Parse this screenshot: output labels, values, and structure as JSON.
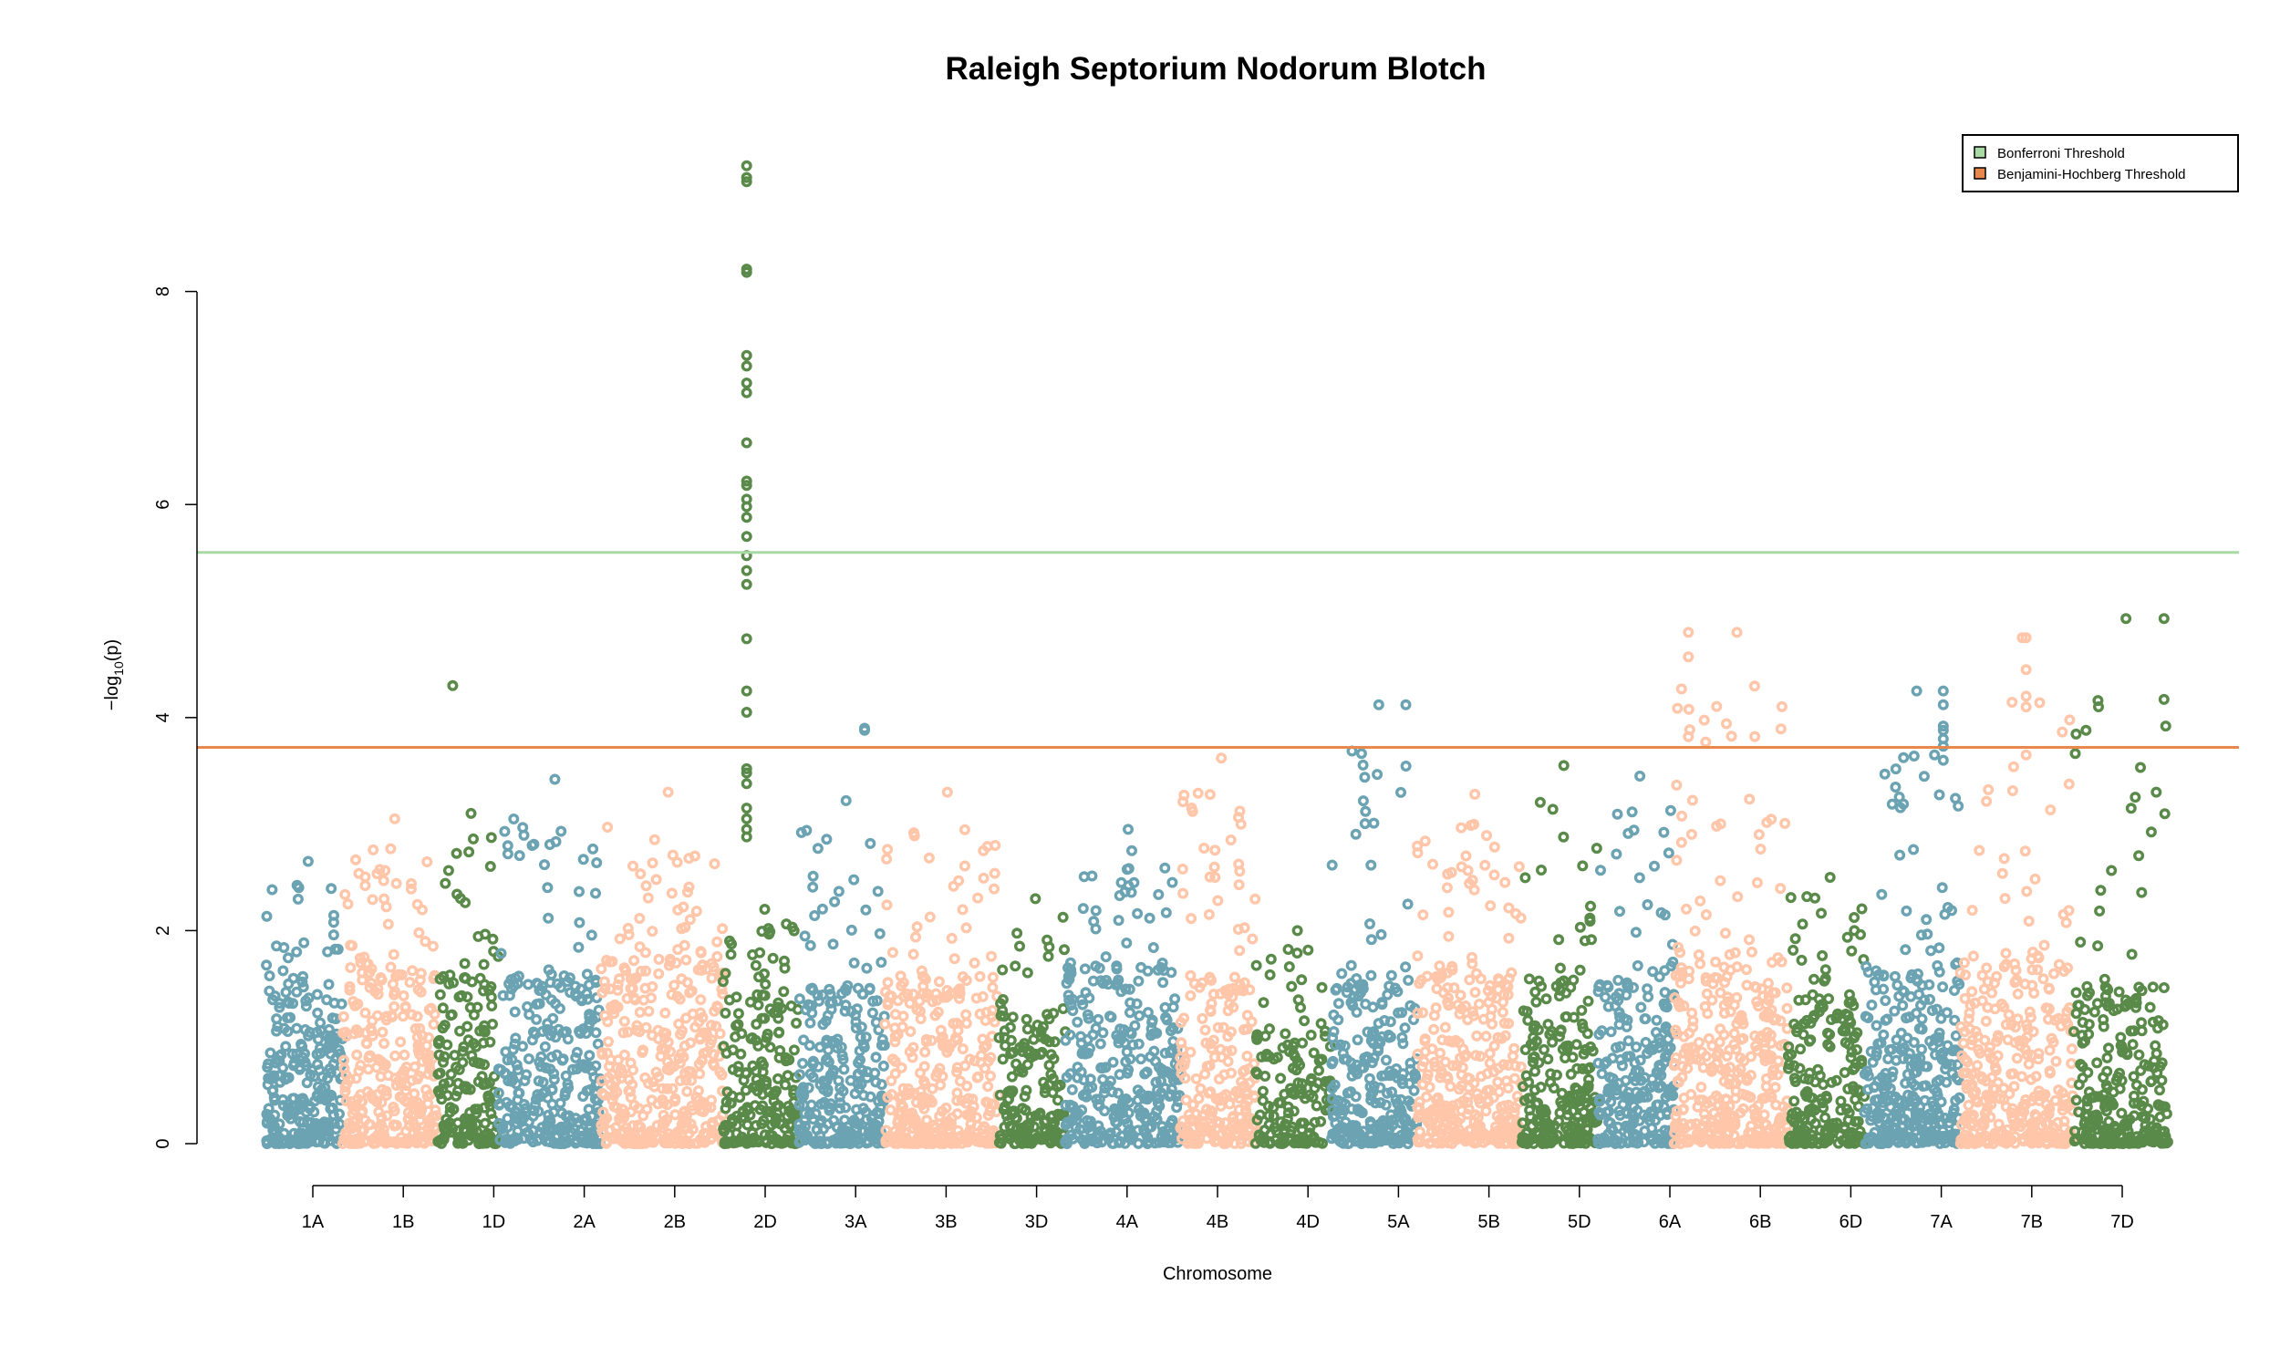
{
  "chart_data": {
    "type": "scatter",
    "title": "Raleigh Septorium Nodorum Blotch",
    "xlabel": "Chromosome",
    "ylabel": "−log",
    "ylabel_sub": "10",
    "ylabel_tail": "(p)",
    "ylim": [
      0,
      9.3
    ],
    "yticks": [
      "0",
      "2",
      "4",
      "6",
      "8"
    ],
    "grid": false,
    "legend_position": "top-right",
    "chromosomes": [
      "1A",
      "1B",
      "1D",
      "2A",
      "2B",
      "2D",
      "3A",
      "3B",
      "3D",
      "4A",
      "4B",
      "4D",
      "5A",
      "5B",
      "5D",
      "6A",
      "6B",
      "6D",
      "7A",
      "7B",
      "7D"
    ],
    "colors": {
      "blue": "#6ba3b3",
      "salmon": "#ffc6aa",
      "green": "#5a8a4a",
      "bonferroni": "#a9d9a5",
      "bh": "#e9884d"
    },
    "thresholds": [
      {
        "name": "Bonferroni Threshold",
        "value": 5.55,
        "color": "#a9d9a5"
      },
      {
        "name": "Benjamini-Hochberg Threshold",
        "value": 3.72,
        "color": "#e9884d"
      }
    ],
    "segments": [
      {
        "chr": "1A",
        "color": "blue",
        "x0": 0.0,
        "x1": 0.04,
        "max": 2.65,
        "dense": 1.6,
        "n": 260
      },
      {
        "chr": "1B",
        "color": "salmon",
        "x0": 0.04,
        "x1": 0.09,
        "max": 3.05,
        "dense": 1.7,
        "n": 300
      },
      {
        "chr": "1D",
        "color": "green",
        "x0": 0.09,
        "x1": 0.122,
        "max": 3.1,
        "dense": 1.7,
        "n": 180
      },
      {
        "chr": "2A",
        "color": "blue",
        "x0": 0.122,
        "x1": 0.176,
        "max": 3.42,
        "dense": 1.6,
        "n": 300
      },
      {
        "chr": "2B",
        "color": "salmon",
        "x0": 0.176,
        "x1": 0.24,
        "max": 3.3,
        "dense": 1.8,
        "n": 380
      },
      {
        "chr": "2D",
        "color": "green",
        "x0": 0.24,
        "x1": 0.28,
        "max": 2.2,
        "dense": 1.6,
        "n": 200
      },
      {
        "chr": "3A",
        "color": "blue",
        "x0": 0.28,
        "x1": 0.325,
        "max": 3.22,
        "dense": 1.5,
        "n": 260
      },
      {
        "chr": "3B",
        "color": "salmon",
        "x0": 0.325,
        "x1": 0.385,
        "max": 3.3,
        "dense": 1.6,
        "n": 340
      },
      {
        "chr": "3D",
        "color": "green",
        "x0": 0.385,
        "x1": 0.42,
        "max": 2.3,
        "dense": 1.3,
        "n": 160
      },
      {
        "chr": "4A",
        "color": "blue",
        "x0": 0.42,
        "x1": 0.48,
        "max": 2.95,
        "dense": 1.7,
        "n": 320
      },
      {
        "chr": "4B",
        "color": "salmon",
        "x0": 0.48,
        "x1": 0.52,
        "max": 3.62,
        "dense": 1.6,
        "n": 220
      },
      {
        "chr": "4D",
        "color": "green",
        "x0": 0.52,
        "x1": 0.56,
        "max": 2.0,
        "dense": 1.2,
        "n": 140
      },
      {
        "chr": "5A",
        "color": "blue",
        "x0": 0.56,
        "x1": 0.605,
        "max": 4.12,
        "dense": 1.6,
        "n": 260
      },
      {
        "chr": "5B",
        "color": "salmon",
        "x0": 0.605,
        "x1": 0.66,
        "max": 3.28,
        "dense": 1.7,
        "n": 320
      },
      {
        "chr": "5D",
        "color": "green",
        "x0": 0.66,
        "x1": 0.7,
        "max": 3.55,
        "dense": 1.6,
        "n": 220
      },
      {
        "chr": "6A",
        "color": "blue",
        "x0": 0.7,
        "x1": 0.74,
        "max": 3.45,
        "dense": 1.5,
        "n": 240
      },
      {
        "chr": "6B",
        "color": "salmon",
        "x0": 0.74,
        "x1": 0.8,
        "max": 4.8,
        "dense": 1.8,
        "n": 380
      },
      {
        "chr": "6D",
        "color": "green",
        "x0": 0.8,
        "x1": 0.84,
        "max": 2.5,
        "dense": 1.4,
        "n": 200
      },
      {
        "chr": "7A",
        "color": "blue",
        "x0": 0.84,
        "x1": 0.89,
        "max": 4.25,
        "dense": 1.7,
        "n": 320
      },
      {
        "chr": "7B",
        "color": "salmon",
        "x0": 0.89,
        "x1": 0.95,
        "max": 4.75,
        "dense": 1.8,
        "n": 340
      },
      {
        "chr": "7D",
        "color": "green",
        "x0": 0.95,
        "x1": 1.0,
        "max": 4.93,
        "dense": 1.5,
        "n": 260
      }
    ],
    "peaks": [
      {
        "chr": "2D",
        "color": "green",
        "x": 0.2525,
        "values": [
          9.18,
          9.07,
          9.03,
          8.21,
          8.18,
          7.4,
          7.3,
          7.14,
          7.05,
          6.58,
          6.22,
          6.18,
          6.05,
          5.98,
          5.88,
          5.7,
          5.52,
          5.38,
          5.25,
          4.74,
          4.25,
          4.05,
          3.52,
          3.48,
          3.38,
          3.15,
          3.05,
          2.95,
          2.88
        ]
      },
      {
        "chr": "1D",
        "color": "green",
        "x": 0.098,
        "values": [
          4.3
        ]
      },
      {
        "chr": "3A",
        "color": "blue",
        "x": 0.3145,
        "values": [
          3.9,
          3.88
        ]
      },
      {
        "chr": "5A",
        "color": "blue",
        "x": 0.599,
        "values": [
          4.12
        ]
      },
      {
        "chr": "6B",
        "color": "salmon",
        "x": 0.7475,
        "values": [
          4.8,
          4.57,
          3.82
        ]
      },
      {
        "chr": "7A",
        "color": "blue",
        "x": 0.8815,
        "values": [
          4.25,
          4.12,
          3.92,
          3.88,
          3.8,
          3.73
        ]
      },
      {
        "chr": "7B",
        "color": "salmon",
        "x": 0.925,
        "values": [
          4.75,
          4.45,
          4.2,
          4.1,
          3.65
        ]
      },
      {
        "chr": "7D",
        "color": "green",
        "x": 0.9565,
        "values": [
          3.88
        ]
      },
      {
        "chr": "7D",
        "color": "green",
        "x": 0.9975,
        "values": [
          4.93,
          4.17
        ]
      }
    ]
  }
}
